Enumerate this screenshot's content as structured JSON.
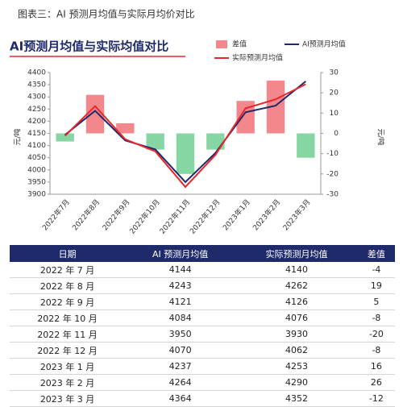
{
  "header": {
    "title": "图表三：AI 预测月均值与实际月均价对比"
  },
  "chart_data": {
    "type": "bar-line",
    "title": "AI预测月均值与实际均值对比",
    "y_label": "元/吨",
    "y2_label": "元/吨",
    "categories": [
      "2022年7月",
      "2022年8月",
      "2022年9月",
      "2022年10月",
      "2022年11月",
      "2022年12月",
      "2023年1月",
      "2023年2月",
      "2023年3月"
    ],
    "series": [
      {
        "name": "差值",
        "type": "bar",
        "axis": "y2",
        "color": "#f4878c",
        "negative_color": "#86d6a4",
        "values": [
          -4,
          19,
          5,
          -8,
          -20,
          -8,
          16,
          26,
          -12
        ]
      },
      {
        "name": "AI预测月均值",
        "type": "line",
        "color": "#1f2a6b",
        "values": [
          4144,
          4243,
          4121,
          4084,
          3950,
          4070,
          4237,
          4264,
          4364
        ]
      },
      {
        "name": "实际预测月均值",
        "type": "line",
        "color": "#e8262b",
        "values": [
          4140,
          4262,
          4126,
          4076,
          3930,
          4062,
          4253,
          4290,
          4352
        ]
      }
    ],
    "ylim": [
      3900,
      4400
    ],
    "yticks": [
      3900,
      3950,
      4000,
      4050,
      4100,
      4150,
      4200,
      4250,
      4300,
      4350,
      4400
    ],
    "y2lim": [
      -30,
      30
    ],
    "y2ticks": [
      -30,
      -20,
      -10,
      0,
      10,
      20,
      30
    ],
    "legend": "top-right",
    "grid": false
  },
  "table": {
    "columns": [
      "日期",
      "AI 预测月均值",
      "实际预测月均值",
      "差值"
    ],
    "rows": [
      [
        "2022 年 7 月",
        4144,
        4140,
        -4
      ],
      [
        "2022 年 8 月",
        4243,
        4262,
        19
      ],
      [
        "2022 年 9 月",
        4121,
        4126,
        5
      ],
      [
        "2022 年 10 月",
        4084,
        4076,
        -8
      ],
      [
        "2022 年 11 月",
        3950,
        3930,
        -20
      ],
      [
        "2022 年 12 月",
        4070,
        4062,
        -8
      ],
      [
        "2023 年 1 月",
        4237,
        4253,
        16
      ],
      [
        "2023 年 2 月",
        4264,
        4290,
        26
      ],
      [
        "2023 年 3 月",
        4364,
        4352,
        -12
      ]
    ]
  }
}
